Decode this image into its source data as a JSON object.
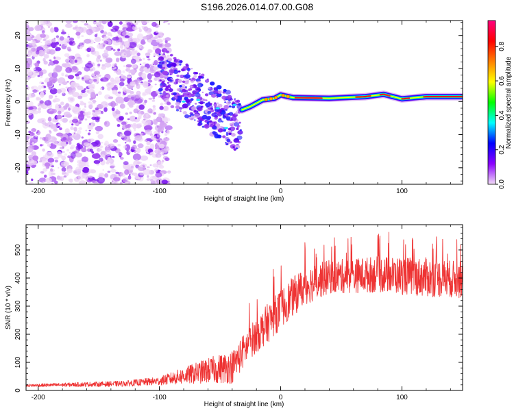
{
  "title": "S196.2026.014.07.00.G08",
  "chart_data": [
    {
      "type": "heatmap",
      "name": "spectrogram",
      "xlabel": "Height of straight line (km)",
      "ylabel": "Frequency (Hz)",
      "xlim": [
        -210,
        150
      ],
      "ylim": [
        -25,
        24.5
      ],
      "xticks": [
        -200,
        -100,
        0,
        100
      ],
      "xtick_labels": [
        "-200",
        "-100",
        "0",
        "100"
      ],
      "yticks": [
        -20,
        -10,
        0,
        10,
        20
      ],
      "ytick_labels": [
        "-20",
        "-10",
        "0",
        "10",
        "20"
      ],
      "colorbar": {
        "label": "Normalized spectral amplitude",
        "range": [
          0.0,
          0.95
        ],
        "ticks": [
          0.0,
          0.2,
          0.4,
          0.6,
          0.8
        ],
        "tick_labels": [
          "0.0",
          "0.2",
          "0.4",
          "0.6",
          "0.8"
        ],
        "colors": [
          "#f2ddf7",
          "#8b00ff",
          "#0000ff",
          "#00ffff",
          "#00ff00",
          "#ffff00",
          "#ff8000",
          "#ff0000",
          "#ff0080"
        ]
      },
      "features": {
        "noise_region_x": [
          -210,
          -92
        ],
        "transition_region_x": [
          -100,
          -32
        ],
        "carrier_line": [
          {
            "x": -32,
            "y": -2.5
          },
          {
            "x": -25,
            "y": -1.5
          },
          {
            "x": -15,
            "y": 0.5
          },
          {
            "x": -5,
            "y": 1.0
          },
          {
            "x": 0,
            "y": 2.0
          },
          {
            "x": 10,
            "y": 1.2
          },
          {
            "x": 40,
            "y": 1.0
          },
          {
            "x": 70,
            "y": 1.5
          },
          {
            "x": 85,
            "y": 2.2
          },
          {
            "x": 100,
            "y": 0.8
          },
          {
            "x": 120,
            "y": 1.5
          },
          {
            "x": 150,
            "y": 1.5
          }
        ]
      }
    },
    {
      "type": "line",
      "name": "snr",
      "xlabel": "Height of straight line (km)",
      "ylabel": "SNR (10 * v/v)",
      "xlim": [
        -210,
        150
      ],
      "ylim": [
        0,
        590
      ],
      "xticks": [
        -200,
        -100,
        0,
        100
      ],
      "xtick_labels": [
        "-200",
        "-100",
        "0",
        "100"
      ],
      "yticks": [
        0,
        100,
        200,
        300,
        400,
        500
      ],
      "ytick_labels": [
        "0",
        "100",
        "200",
        "300",
        "400",
        "500"
      ],
      "line_color": "#ee3333",
      "envelope": [
        {
          "x": -210,
          "base": 18,
          "spread": 10
        },
        {
          "x": -130,
          "base": 25,
          "spread": 20
        },
        {
          "x": -100,
          "base": 35,
          "spread": 30
        },
        {
          "x": -80,
          "base": 55,
          "spread": 60
        },
        {
          "x": -60,
          "base": 75,
          "spread": 90
        },
        {
          "x": -40,
          "base": 90,
          "spread": 120
        },
        {
          "x": -25,
          "base": 180,
          "spread": 120
        },
        {
          "x": -10,
          "base": 250,
          "spread": 140
        },
        {
          "x": 5,
          "base": 320,
          "spread": 140
        },
        {
          "x": 20,
          "base": 380,
          "spread": 140
        },
        {
          "x": 40,
          "base": 410,
          "spread": 120
        },
        {
          "x": 80,
          "base": 420,
          "spread": 130
        },
        {
          "x": 120,
          "base": 410,
          "spread": 140
        },
        {
          "x": 150,
          "base": 400,
          "spread": 130
        }
      ]
    }
  ]
}
